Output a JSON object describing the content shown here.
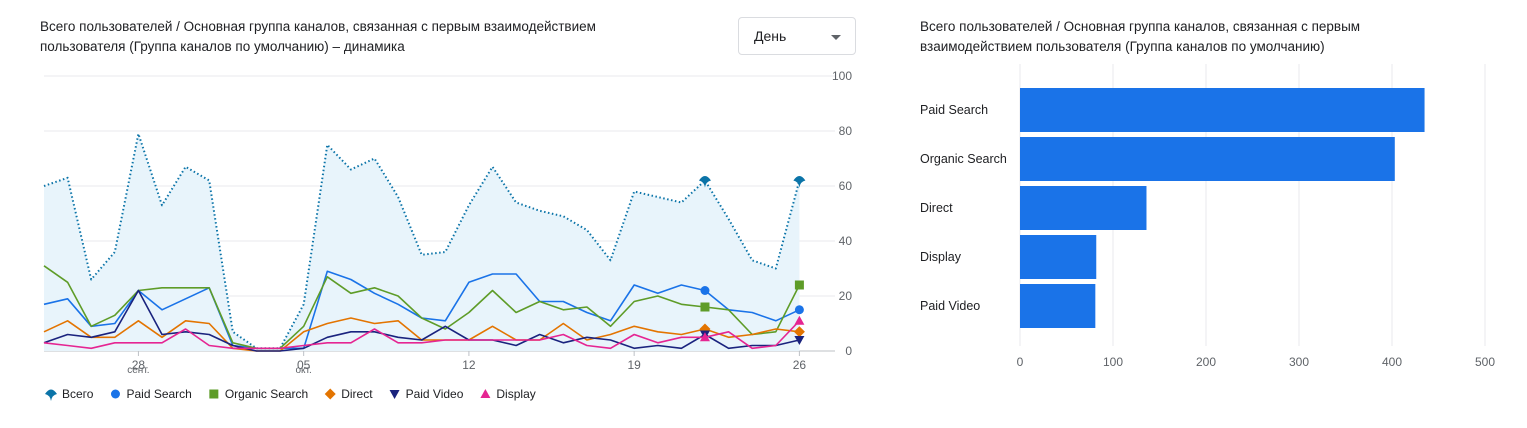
{
  "left_card": {
    "title": "Всего пользователей / Основная группа каналов, связанная с первым взаимодействием пользователя (Группа каналов по умолчанию) – динамика",
    "granularity_label": "День"
  },
  "right_card": {
    "title": "Всего пользователей / Основная группа каналов, связанная с первым взаимодействием пользователя (Группа каналов по умолчанию)"
  },
  "colors": {
    "total": "#0b74a8",
    "total_fill": "#e8f4fb",
    "paid_search": "#1a73e8",
    "organic_search": "#5e9c28",
    "direct": "#e37400",
    "paid_video": "#1a237e",
    "display": "#e52592",
    "bar": "#1a73e8",
    "grid": "#e8eaed"
  },
  "chart_data": [
    {
      "type": "line",
      "title": "Всего пользователей / Основная группа каналов, связанная с первым взаимодействием пользователя (Группа каналов по умолчанию) – динамика",
      "x": [
        24,
        25,
        26,
        27,
        28,
        29,
        30,
        1,
        2,
        3,
        4,
        5,
        6,
        7,
        8,
        9,
        10,
        11,
        12,
        13,
        14,
        15,
        16,
        17,
        18,
        19,
        20,
        21,
        22,
        23,
        24,
        25,
        26,
        27
      ],
      "x_ticks": [
        {
          "index": 4,
          "label": "28",
          "sub": "сент."
        },
        {
          "index": 11,
          "label": "05",
          "sub": "окт."
        },
        {
          "index": 18,
          "label": "12",
          "sub": ""
        },
        {
          "index": 25,
          "label": "19",
          "sub": ""
        },
        {
          "index": 32,
          "label": "26",
          "sub": ""
        }
      ],
      "ylim": [
        0,
        100
      ],
      "y_ticks": [
        0,
        20,
        40,
        60,
        80,
        100
      ],
      "y_axis_position": "right",
      "grid": true,
      "legend_position": "bottom-left",
      "series": [
        {
          "name": "Всего",
          "key": "total",
          "marker": "pin",
          "dotted": true,
          "area": true,
          "values": [
            60,
            63,
            26,
            36,
            79,
            53,
            67,
            62,
            7,
            1,
            1,
            17,
            75,
            66,
            70,
            56,
            35,
            36,
            53,
            67,
            54,
            51,
            49,
            44,
            33,
            58,
            56,
            54,
            62,
            48,
            33,
            30,
            62,
            null
          ]
        },
        {
          "name": "Paid Search",
          "key": "paid_search",
          "marker": "circle",
          "values": [
            17,
            19,
            9,
            10,
            22,
            15,
            19,
            23,
            2,
            1,
            1,
            1,
            29,
            26,
            21,
            17,
            12,
            11,
            25,
            28,
            28,
            18,
            18,
            14,
            11,
            24,
            21,
            24,
            22,
            15,
            14,
            11,
            15,
            null
          ]
        },
        {
          "name": "Organic Search",
          "key": "organic_search",
          "marker": "square",
          "values": [
            31,
            25,
            9,
            13,
            22,
            23,
            23,
            23,
            3,
            1,
            1,
            9,
            27,
            21,
            23,
            20,
            12,
            8,
            14,
            22,
            14,
            18,
            15,
            16,
            9,
            18,
            20,
            17,
            16,
            15,
            6,
            7,
            24,
            null
          ]
        },
        {
          "name": "Direct",
          "key": "direct",
          "marker": "diamond",
          "values": [
            7,
            11,
            5,
            5,
            11,
            5,
            11,
            10,
            1,
            0,
            0,
            7,
            10,
            12,
            10,
            11,
            4,
            4,
            4,
            9,
            4,
            4,
            10,
            4,
            6,
            9,
            7,
            6,
            8,
            5,
            6,
            8,
            7,
            null
          ]
        },
        {
          "name": "Paid Video",
          "key": "paid_video",
          "marker": "triangle-down",
          "values": [
            3,
            6,
            5,
            7,
            22,
            6,
            7,
            6,
            2,
            0,
            0,
            1,
            5,
            7,
            7,
            5,
            4,
            9,
            4,
            4,
            2,
            6,
            3,
            5,
            4,
            1,
            2,
            1,
            6,
            1,
            2,
            2,
            4,
            null
          ]
        },
        {
          "name": "Display",
          "key": "display",
          "marker": "triangle-up",
          "values": [
            3,
            2,
            1,
            3,
            3,
            3,
            8,
            2,
            1,
            1,
            1,
            2,
            3,
            3,
            8,
            3,
            3,
            4,
            4,
            4,
            4,
            4,
            6,
            2,
            1,
            6,
            3,
            5,
            5,
            7,
            1,
            2,
            11,
            null
          ]
        }
      ]
    },
    {
      "type": "bar",
      "orientation": "horizontal",
      "title": "Всего пользователей / Основная группа каналов, связанная с первым взаимодействием пользователя (Группа каналов по умолчанию)",
      "categories": [
        "Paid Search",
        "Organic Search",
        "Direct",
        "Display",
        "Paid Video"
      ],
      "values": [
        435,
        403,
        136,
        82,
        81
      ],
      "xlim": [
        0,
        500
      ],
      "x_ticks": [
        0,
        100,
        200,
        300,
        400,
        500
      ],
      "grid": true
    }
  ]
}
